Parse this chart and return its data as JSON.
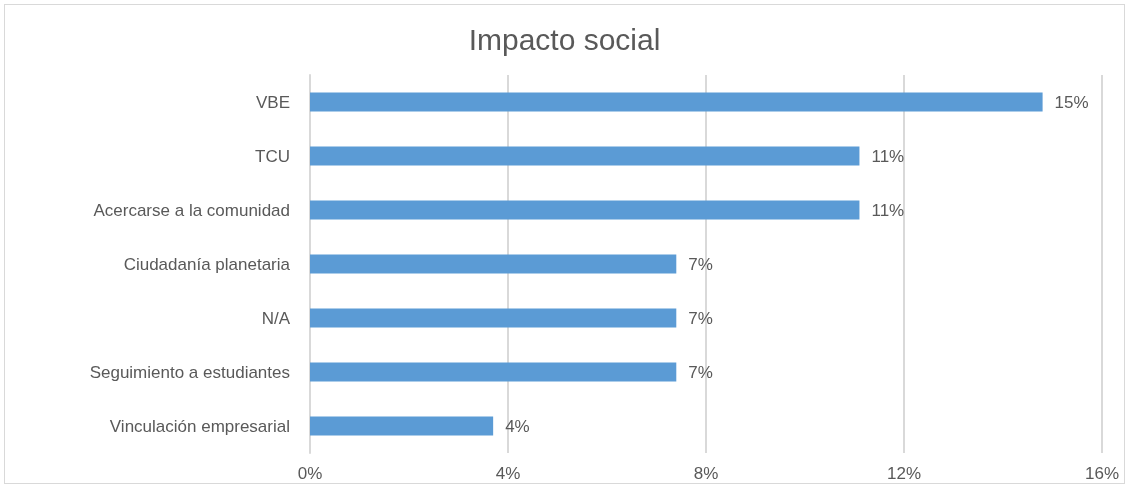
{
  "chart_data": {
    "type": "bar",
    "title": "Impacto social",
    "orientation": "horizontal",
    "categories": [
      "VBE",
      "TCU",
      "Acercarse a la comunidad",
      "Ciudadanía planetaria",
      "N/A",
      "Seguimiento a estudiantes",
      "Vinculación empresarial"
    ],
    "values": [
      14.8,
      11.1,
      11.1,
      7.4,
      7.4,
      7.4,
      3.7
    ],
    "value_labels": [
      "15%",
      "11%",
      "11%",
      "7%",
      "7%",
      "7%",
      "4%"
    ],
    "color": "#5b9bd5",
    "xlim": [
      0,
      16
    ],
    "xticks": [
      {
        "value": 0,
        "label": "0%"
      },
      {
        "value": 4,
        "label": "4%"
      },
      {
        "value": 8,
        "label": "8%"
      },
      {
        "value": 12,
        "label": "12%"
      },
      {
        "value": 16,
        "label": "16%"
      }
    ],
    "grid": "x"
  }
}
